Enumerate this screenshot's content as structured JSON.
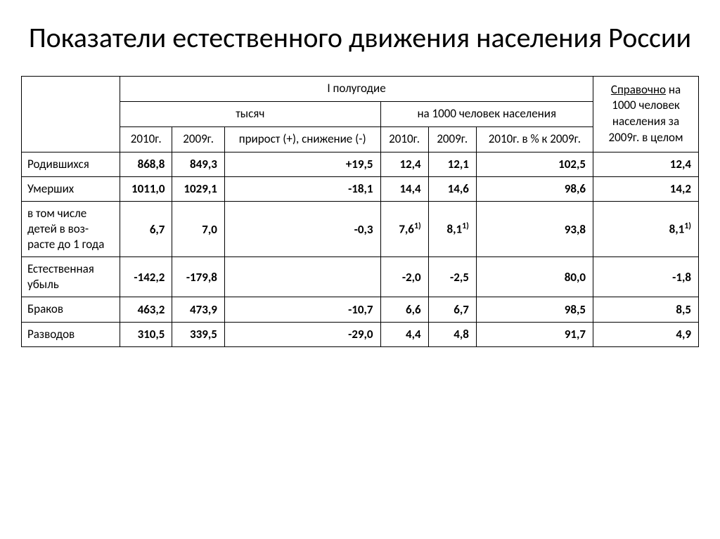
{
  "title": "Показатели естественного движения населения России",
  "table": {
    "header": {
      "top_span": "I полугодие",
      "thousands": "тысяч",
      "per1000": "на 1000 человек населения",
      "reference_underlined": "Справочно",
      "reference_rest": " на 1000 человек населения  за 2009г. в целом",
      "y2010": "2010г.",
      "y2009": "2009г.",
      "change": "прирост (+), снижение (-)",
      "pct": "2010г. в % к 2009г."
    },
    "rows": [
      {
        "label": "Родившихся",
        "c1": "868,8",
        "c2": "849,3",
        "c3": "+19,5",
        "c4": "12,4",
        "c5": "12,1",
        "c6": "102,5",
        "c7": "12,4"
      },
      {
        "label": "Умерших",
        "c1": "1011,0",
        "c2": "1029,1",
        "c3": "-18,1",
        "c4": "14,4",
        "c5": "14,6",
        "c6": "98,6",
        "c7": "14,2"
      },
      {
        "label": "в том числе детей в воз-расте до 1 года",
        "c1": "6,7",
        "c2": "7,0",
        "c3": "-0,3",
        "c4": "7,6",
        "c4sup": "1)",
        "c5": "8,1",
        "c5sup": "1)",
        "c6": "93,8",
        "c7": "8,1",
        "c7sup": "1)"
      },
      {
        "label": "Естественная убыль",
        "c1": "-142,2",
        "c2": "-179,8",
        "c3": "",
        "c4": "-2,0",
        "c5": "-2,5",
        "c6": "80,0",
        "c7": "-1,8"
      },
      {
        "label": "Браков",
        "c1": "463,2",
        "c2": "473,9",
        "c3": "-10,7",
        "c4": "6,6",
        "c5": "6,7",
        "c6": "98,5",
        "c7": "8,5"
      },
      {
        "label": "Разводов",
        "c1": "310,5",
        "c2": "339,5",
        "c3": "-29,0",
        "c4": "4,4",
        "c5": "4,8",
        "c6": "91,7",
        "c7": "4,9"
      }
    ]
  },
  "style": {
    "background_color": "#ffffff",
    "text_color": "#000000",
    "border_color": "#000000",
    "title_fontsize": 40,
    "cell_fontsize": 17,
    "data_font_weight": 700
  }
}
